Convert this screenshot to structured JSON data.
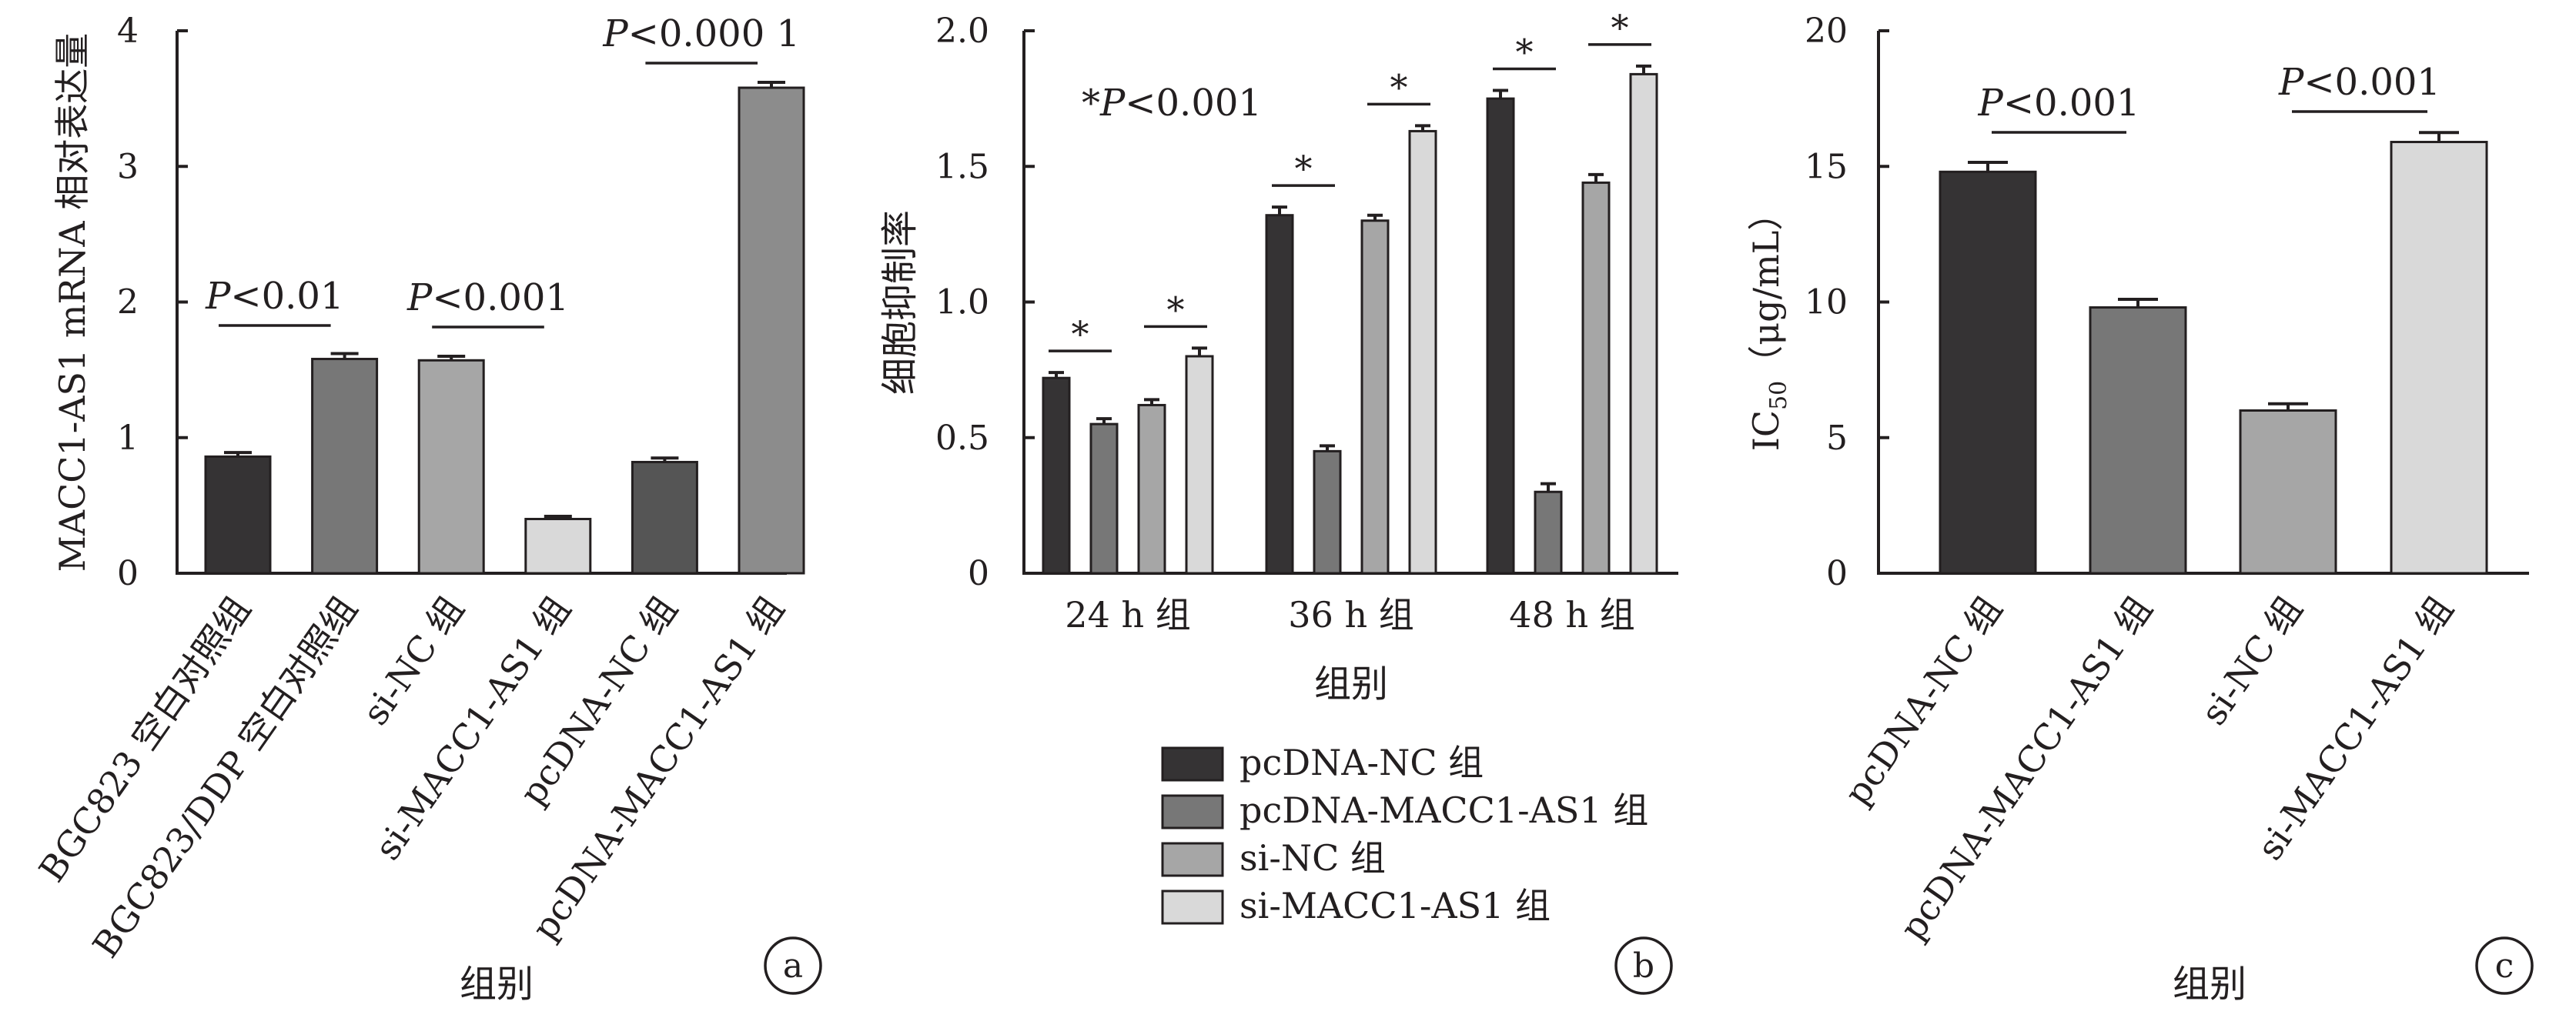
{
  "colors": {
    "c1": "#353334",
    "c2": "#777777",
    "c3": "#a6a6a6",
    "c4": "#d9d9d9",
    "axis": "#231f20"
  },
  "chart_data": [
    {
      "type": "bar",
      "panel_label": "a",
      "ylabel": "MACC1-AS1 mRNA 相对表达量",
      "xlabel": "组别",
      "ylim": [
        0,
        4
      ],
      "yticks": [
        "0",
        "1",
        "2",
        "3",
        "4"
      ],
      "categories": [
        "BGC823 空白对照组",
        "BGC823/DDP 空白对照组",
        "si-NC 组",
        "si-MACC1-AS1 组",
        "pcDNA-NC 组",
        "pcDNA-MACC1-AS1 组"
      ],
      "values": [
        0.86,
        1.58,
        1.57,
        0.4,
        0.82,
        3.58
      ],
      "errors": [
        0.03,
        0.04,
        0.03,
        0.02,
        0.03,
        0.04
      ],
      "bar_colors": [
        "#353334",
        "#777777",
        "#a6a6a6",
        "#d9d9d9",
        "#555555",
        "#8c8c8c"
      ],
      "annotations": [
        {
          "from": 0,
          "to": 1,
          "prefix": "P",
          "text": "<0.01"
        },
        {
          "from": 2,
          "to": 3,
          "prefix": "P",
          "text": "<0.001"
        },
        {
          "from": 4,
          "to": 5,
          "prefix": "P",
          "text": "<0.000 1"
        }
      ]
    },
    {
      "type": "bar",
      "panel_label": "b",
      "ylabel": "细胞抑制率",
      "xlabel": "组别",
      "ylim": [
        0,
        2.0
      ],
      "yticks": [
        "0",
        "0.5",
        "1.0",
        "1.5",
        "2.0"
      ],
      "categories": [
        "24 h 组",
        "36 h 组",
        "48 h 组"
      ],
      "series": [
        {
          "name": "pcDNA-NC 组",
          "values": [
            0.72,
            1.32,
            1.75
          ],
          "errors": [
            0.02,
            0.03,
            0.03
          ]
        },
        {
          "name": "pcDNA-MACC1-AS1 组",
          "values": [
            0.55,
            0.45,
            0.3
          ],
          "errors": [
            0.02,
            0.02,
            0.03
          ]
        },
        {
          "name": "si-NC 组",
          "values": [
            0.62,
            1.3,
            1.44
          ],
          "errors": [
            0.02,
            0.02,
            0.03
          ]
        },
        {
          "name": "si-MACC1-AS1 组",
          "values": [
            0.8,
            1.63,
            1.84
          ],
          "errors": [
            0.03,
            0.02,
            0.03
          ]
        }
      ],
      "star": "*",
      "note_star": "*",
      "note_p": "P",
      "note_text": "<0.001"
    },
    {
      "type": "bar",
      "panel_label": "c",
      "ylabel_main": "IC",
      "ylabel_sub": "50",
      "ylabel_unit": "（μg/mL）",
      "xlabel": "组别",
      "ylim": [
        0,
        20
      ],
      "yticks": [
        "0",
        "5",
        "10",
        "15",
        "20"
      ],
      "categories": [
        "pcDNA-NC 组",
        "pcDNA-MACC1-AS1 组",
        "si-NC 组",
        "si-MACC1-AS1 组"
      ],
      "values": [
        14.8,
        9.8,
        6.0,
        15.9
      ],
      "errors": [
        0.35,
        0.3,
        0.25,
        0.35
      ],
      "bar_colors": [
        "#353334",
        "#777777",
        "#a6a6a6",
        "#d9d9d9"
      ],
      "annotations": [
        {
          "from": 0,
          "to": 1,
          "prefix": "P",
          "text": "<0.001"
        },
        {
          "from": 2,
          "to": 3,
          "prefix": "P",
          "text": "<0.001"
        }
      ]
    }
  ]
}
